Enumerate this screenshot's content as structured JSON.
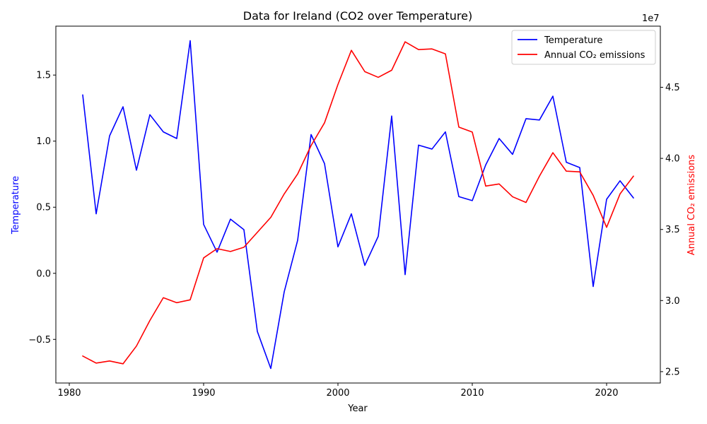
{
  "chart_data": {
    "type": "line",
    "title": "Data for Ireland (CO2 over Temperature)",
    "xlabel": "Year",
    "ylabel_left": "Temperature",
    "ylabel_right": "Annual CO₂ emissions",
    "right_axis_multiplier": "1e7",
    "xlim": [
      1979,
      2024
    ],
    "ylim_left": [
      -0.83,
      1.87
    ],
    "ylim_right": [
      24.2,
      49.3
    ],
    "x_ticks": [
      1980,
      1990,
      2000,
      2010,
      2020
    ],
    "y_left_ticks": [
      -0.5,
      0.0,
      0.5,
      1.0,
      1.5
    ],
    "y_left_tick_labels": [
      "−0.5",
      "0.0",
      "0.5",
      "1.0",
      "1.5"
    ],
    "y_right_ticks": [
      25,
      30,
      35,
      40,
      45
    ],
    "y_right_tick_labels": [
      "2.5",
      "3.0",
      "3.5",
      "4.0",
      "4.5"
    ],
    "legend_position": "top-right",
    "grid": false,
    "x": [
      1981,
      1982,
      1983,
      1984,
      1985,
      1986,
      1987,
      1988,
      1989,
      1990,
      1991,
      1992,
      1993,
      1994,
      1995,
      1996,
      1997,
      1998,
      1999,
      2000,
      2001,
      2002,
      2003,
      2004,
      2005,
      2006,
      2007,
      2008,
      2009,
      2010,
      2011,
      2012,
      2013,
      2014,
      2015,
      2016,
      2017,
      2018,
      2019,
      2020,
      2021,
      2022
    ],
    "series": [
      {
        "name": "Temperature",
        "color": "#0000ff",
        "axis": "left",
        "values": [
          1.35,
          0.45,
          1.04,
          1.26,
          0.78,
          1.2,
          1.07,
          1.02,
          1.76,
          0.37,
          0.16,
          0.41,
          0.33,
          -0.44,
          -0.72,
          -0.14,
          0.25,
          1.05,
          0.83,
          0.2,
          0.45,
          0.06,
          0.28,
          1.19,
          -0.01,
          0.97,
          0.94,
          1.07,
          0.58,
          0.55,
          0.82,
          1.02,
          0.9,
          1.17,
          1.16,
          1.34,
          0.84,
          0.8,
          -0.1,
          0.56,
          0.7,
          0.57
        ]
      },
      {
        "name": "Annual CO₂ emissions",
        "color": "#ff0000",
        "axis": "right",
        "unit_scale": "1e6",
        "values": [
          26.1,
          25.6,
          25.75,
          25.55,
          26.8,
          28.6,
          30.2,
          29.85,
          30.05,
          33.0,
          33.65,
          33.45,
          33.75,
          34.8,
          35.85,
          37.5,
          38.9,
          40.9,
          42.5,
          45.2,
          47.6,
          46.1,
          45.7,
          46.2,
          48.2,
          47.65,
          47.7,
          47.35,
          42.2,
          41.85,
          38.05,
          38.2,
          37.3,
          36.9,
          38.75,
          40.4,
          39.1,
          39.05,
          37.4,
          35.15,
          37.5,
          38.75
        ]
      }
    ]
  }
}
